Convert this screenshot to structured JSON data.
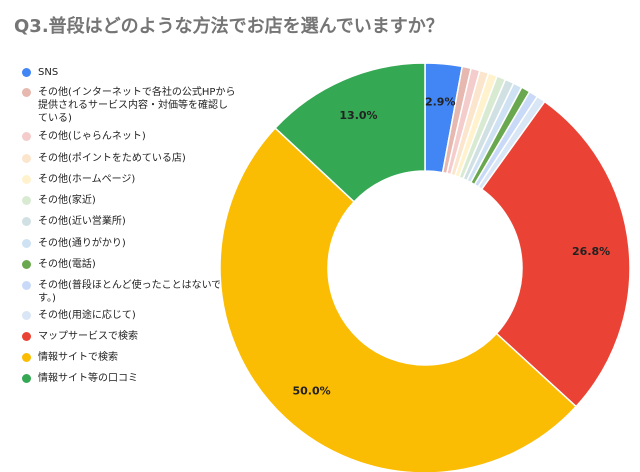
{
  "chart_data": {
    "type": "pie",
    "donut": true,
    "title": "Q3.普段はどのような方法でお店を選んでいますか？",
    "legend_position": "left",
    "slices": [
      {
        "label": "SNS",
        "value": 2.9,
        "color": "#4285f4",
        "data_label": "2.9%"
      },
      {
        "label": "その他(インターネットで各社の公式HPから提供されるサービス内容・対価等を確認している)",
        "value": 0.7,
        "color": "#e6b8af",
        "data_label": ""
      },
      {
        "label": "その他(じゃらんネット)",
        "value": 0.7,
        "color": "#f4cccc",
        "data_label": ""
      },
      {
        "label": "その他(ポイントをためている店)",
        "value": 0.7,
        "color": "#fce5cd",
        "data_label": ""
      },
      {
        "label": "その他(ホームページ)",
        "value": 0.7,
        "color": "#fff2cc",
        "data_label": ""
      },
      {
        "label": "その他(家近)",
        "value": 0.7,
        "color": "#d9ead3",
        "data_label": ""
      },
      {
        "label": "その他(近い営業所)",
        "value": 0.7,
        "color": "#d0e0e3",
        "data_label": ""
      },
      {
        "label": "その他(通りがかり)",
        "value": 0.7,
        "color": "#cfe2f3",
        "data_label": ""
      },
      {
        "label": "その他(電話)",
        "value": 0.7,
        "color": "#6aa84f",
        "data_label": ""
      },
      {
        "label": "その他(普段ほとんど使ったことはないです。)",
        "value": 0.7,
        "color": "#c9daf8",
        "data_label": ""
      },
      {
        "label": "その他(用途に応じて)",
        "value": 0.7,
        "color": "#d9e6f5",
        "data_label": ""
      },
      {
        "label": "マップサービスで検索",
        "value": 26.8,
        "color": "#ea4335",
        "data_label": "26.8%"
      },
      {
        "label": "情報サイトで検索",
        "value": 50.0,
        "color": "#fbbc04",
        "data_label": "50.0%"
      },
      {
        "label": "情報サイト等の口コミ",
        "value": 13.0,
        "color": "#34a853",
        "data_label": "13.0%"
      }
    ]
  }
}
